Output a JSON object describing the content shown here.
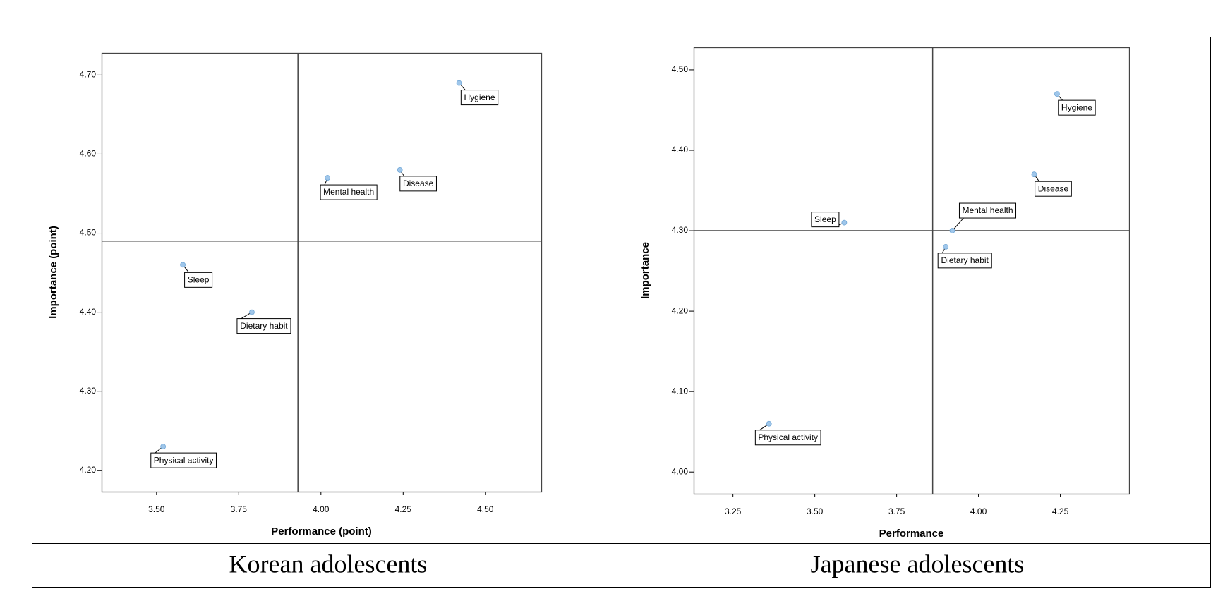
{
  "chart_data": [
    {
      "type": "scatter",
      "caption": "Korean adolescents",
      "x_label": "Performance (point)",
      "y_label": "Importance (point)",
      "color": "#9fc6ea",
      "point_labels": [
        "Hygiene",
        "Disease",
        "Mental health",
        "Sleep",
        "Dietary habit",
        "Physical activity"
      ],
      "x": [
        4.42,
        4.24,
        4.02,
        3.58,
        3.79,
        3.52
      ],
      "values": [
        4.69,
        4.58,
        4.57,
        4.46,
        4.4,
        4.23
      ],
      "reference_lines": {
        "x": 3.93,
        "y": 4.49
      },
      "xlim": [
        3.333,
        4.67
      ],
      "ylim": [
        4.173,
        4.728
      ],
      "xticks": [
        {
          "value": 3.5,
          "label": "3.50"
        },
        {
          "value": 3.75,
          "label": "3.75"
        },
        {
          "value": 4.0,
          "label": "4.00"
        },
        {
          "value": 4.25,
          "label": "4.25"
        },
        {
          "value": 4.5,
          "label": "4.50"
        }
      ],
      "yticks": [
        {
          "value": 4.2,
          "label": "4.20"
        },
        {
          "value": 4.3,
          "label": "4.30"
        },
        {
          "value": 4.4,
          "label": "4.40"
        },
        {
          "value": 4.5,
          "label": "4.50"
        },
        {
          "value": 4.6,
          "label": "4.60"
        },
        {
          "value": 4.7,
          "label": "4.70"
        }
      ]
    },
    {
      "type": "scatter",
      "caption": "Japanese adolescents",
      "x_label": "Performance",
      "y_label": "Importance",
      "color": "#9fc6ea",
      "point_labels": [
        "Hygiene",
        "Disease",
        "Mental health",
        "Sleep",
        "Dietary habit",
        "Physical activity"
      ],
      "x": [
        4.24,
        4.17,
        3.92,
        3.59,
        3.9,
        3.36
      ],
      "values": [
        4.47,
        4.37,
        4.3,
        4.31,
        4.28,
        4.06
      ],
      "reference_lines": {
        "x": 3.86,
        "y": 4.3
      },
      "xlim": [
        3.13,
        4.46
      ],
      "ylim": [
        3.973,
        4.528
      ],
      "xticks": [
        {
          "value": 3.25,
          "label": "3.25"
        },
        {
          "value": 3.5,
          "label": "3.50"
        },
        {
          "value": 3.75,
          "label": "3.75"
        },
        {
          "value": 4.0,
          "label": "4.00"
        },
        {
          "value": 4.25,
          "label": "4.25"
        }
      ],
      "yticks": [
        {
          "value": 4.0,
          "label": "4.00"
        },
        {
          "value": 4.1,
          "label": "4.10"
        },
        {
          "value": 4.2,
          "label": "4.20"
        },
        {
          "value": 4.3,
          "label": "4.30"
        },
        {
          "value": 4.4,
          "label": "4.40"
        },
        {
          "value": 4.5,
          "label": "4.50"
        }
      ]
    }
  ]
}
